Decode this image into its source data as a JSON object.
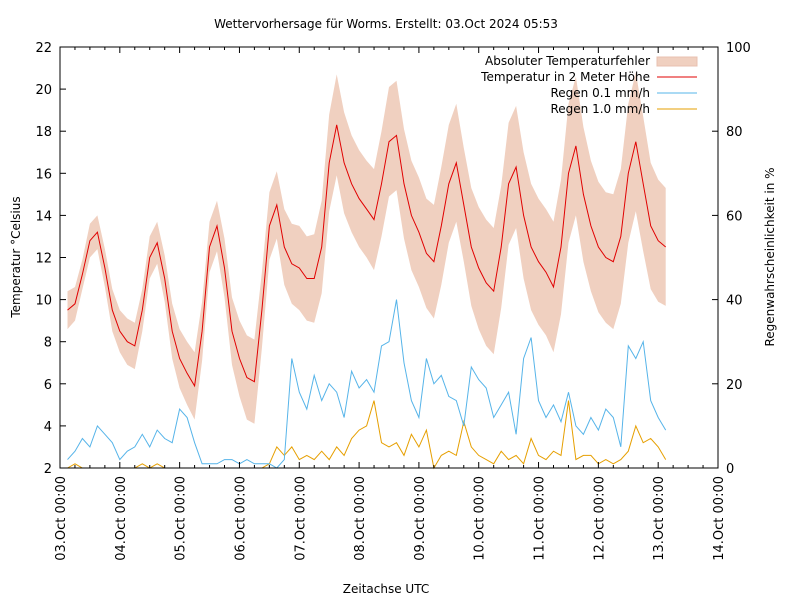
{
  "chart_data": {
    "type": "line",
    "title": "Wettervorhersage für Worms. Erstellt: 03.Oct 2024 05:53",
    "xlabel": "Zeitachse UTC",
    "ylabel": "Temperatur °Celsius",
    "y2label": "Regenwahrscheinlichkeit in %",
    "xlim_hours": [
      0,
      264
    ],
    "ylim": [
      2,
      22
    ],
    "y2lim": [
      0,
      100
    ],
    "x_ticks": [
      "03.Oct 00:00",
      "04.Oct 00:00",
      "05.Oct 00:00",
      "06.Oct 00:00",
      "07.Oct 00:00",
      "08.Oct 00:00",
      "09.Oct 00:00",
      "10.Oct 00:00",
      "11.Oct 00:00",
      "12.Oct 00:00",
      "13.Oct 00:00",
      "14.Oct 00:00"
    ],
    "y_ticks": [
      2,
      4,
      6,
      8,
      10,
      12,
      14,
      16,
      18,
      20,
      22
    ],
    "y2_ticks": [
      0,
      20,
      40,
      60,
      80,
      100
    ],
    "legend_position": "top-right",
    "legend": [
      {
        "label": "Absoluter Temperaturfehler",
        "color": "#f0d0c0",
        "kind": "band"
      },
      {
        "label": "Temperatur in 2 Meter Höhe",
        "color": "#e00000",
        "kind": "line"
      },
      {
        "label": "Regen 0.1 mm/h",
        "color": "#56b4e9",
        "kind": "line"
      },
      {
        "label": "Regen 1.0 mm/h",
        "color": "#e69f00",
        "kind": "line"
      }
    ],
    "time_step_hours": 3,
    "time_start_hours": 3,
    "temperature": [
      9.5,
      9.8,
      11.2,
      12.8,
      13.2,
      11.5,
      9.5,
      8.5,
      8.0,
      7.8,
      9.5,
      12.0,
      12.7,
      11.0,
      8.5,
      7.2,
      6.5,
      5.9,
      8.5,
      12.5,
      13.5,
      11.5,
      8.5,
      7.2,
      6.3,
      6.1,
      9.5,
      13.5,
      14.5,
      12.5,
      11.7,
      11.5,
      11.0,
      11.0,
      12.5,
      16.5,
      18.3,
      16.5,
      15.5,
      14.8,
      14.3,
      13.8,
      15.5,
      17.5,
      17.8,
      15.5,
      14.0,
      13.2,
      12.2,
      11.8,
      13.5,
      15.5,
      16.5,
      14.5,
      12.5,
      11.5,
      10.8,
      10.4,
      12.5,
      15.5,
      16.3,
      14.0,
      12.5,
      11.8,
      11.3,
      10.6,
      12.5,
      16.0,
      17.3,
      15.0,
      13.5,
      12.5,
      12.0,
      11.8,
      13.0,
      16.0,
      17.5,
      15.5,
      13.5,
      12.8,
      12.5
    ],
    "temperature_error": [
      0.9,
      0.8,
      0.7,
      0.8,
      0.8,
      0.9,
      1.0,
      1.0,
      1.1,
      1.1,
      1.0,
      1.0,
      1.0,
      1.1,
      1.3,
      1.4,
      1.5,
      1.6,
      1.4,
      1.2,
      1.2,
      1.4,
      1.6,
      1.8,
      2.0,
      2.0,
      1.8,
      1.6,
      1.6,
      1.8,
      1.9,
      2.0,
      2.0,
      2.1,
      2.2,
      2.3,
      2.4,
      2.4,
      2.3,
      2.3,
      2.3,
      2.4,
      2.5,
      2.6,
      2.6,
      2.6,
      2.6,
      2.6,
      2.6,
      2.7,
      2.8,
      2.8,
      2.8,
      2.7,
      2.8,
      2.9,
      3.0,
      3.0,
      2.9,
      2.9,
      2.9,
      3.0,
      3.0,
      3.0,
      3.0,
      3.1,
      3.2,
      3.3,
      3.3,
      3.2,
      3.1,
      3.1,
      3.1,
      3.2,
      3.2,
      3.3,
      3.3,
      3.2,
      3.0,
      2.9,
      2.8
    ],
    "rain_01": [
      2,
      4,
      7,
      5,
      10,
      8,
      6,
      2,
      4,
      5,
      8,
      5,
      9,
      7,
      6,
      14,
      12,
      6,
      1,
      1,
      1,
      2,
      2,
      1,
      2,
      1,
      1,
      1,
      0,
      2,
      26,
      18,
      14,
      22,
      16,
      20,
      18,
      12,
      23,
      19,
      21,
      18,
      29,
      30,
      40,
      25,
      16,
      12,
      26,
      20,
      22,
      17,
      16,
      10,
      24,
      21,
      19,
      12,
      15,
      18,
      8,
      26,
      31,
      16,
      12,
      15,
      11,
      18,
      10,
      8,
      12,
      9,
      14,
      12,
      5,
      29,
      26,
      30,
      16,
      12,
      9
    ],
    "rain_10": [
      0,
      1,
      0,
      0,
      0,
      0,
      0,
      0,
      0,
      0,
      1,
      0,
      1,
      0,
      0,
      0,
      0,
      0,
      0,
      0,
      0,
      0,
      0,
      0,
      0,
      0,
      0,
      1,
      5,
      3,
      5,
      2,
      3,
      2,
      4,
      2,
      5,
      3,
      7,
      9,
      10,
      16,
      6,
      5,
      6,
      3,
      8,
      5,
      9,
      0,
      3,
      4,
      3,
      11,
      5,
      3,
      2,
      1,
      4,
      2,
      3,
      1,
      7,
      3,
      2,
      4,
      3,
      16,
      2,
      3,
      3,
      1,
      2,
      1,
      2,
      4,
      10,
      6,
      7,
      5,
      2
    ],
    "ylabel_right": "Regenwahrscheinlichkeit in %"
  }
}
